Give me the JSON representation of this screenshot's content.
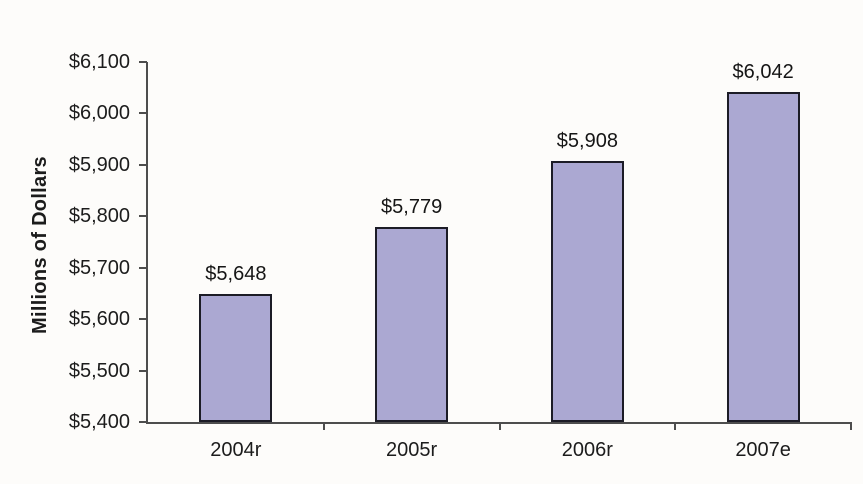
{
  "chart_data": {
    "type": "bar",
    "title": "",
    "xlabel": "",
    "ylabel": "Millions of Dollars",
    "categories": [
      "2004r",
      "2005r",
      "2006r",
      "2007e"
    ],
    "values": [
      5648,
      5779,
      5908,
      6042
    ],
    "data_labels": [
      "$5,648",
      "$5,779",
      "$5,908",
      "$6,042"
    ],
    "ylim": [
      5400,
      6100
    ],
    "ytick_step": 100,
    "yticks": [
      5400,
      5500,
      5600,
      5700,
      5800,
      5900,
      6000,
      6100
    ],
    "ytick_labels": [
      "$5,400",
      "$5,500",
      "$5,600",
      "$5,700",
      "$5,800",
      "$5,900",
      "$6,000",
      "$6,100"
    ],
    "grid": false,
    "legend_position": "none",
    "colors": {
      "bar_fill": "#aba8d2",
      "bar_border": "#1c1c26",
      "axis": "#4d4d4d",
      "text": "#1c1c1c",
      "background": "#fdfcfa"
    }
  }
}
